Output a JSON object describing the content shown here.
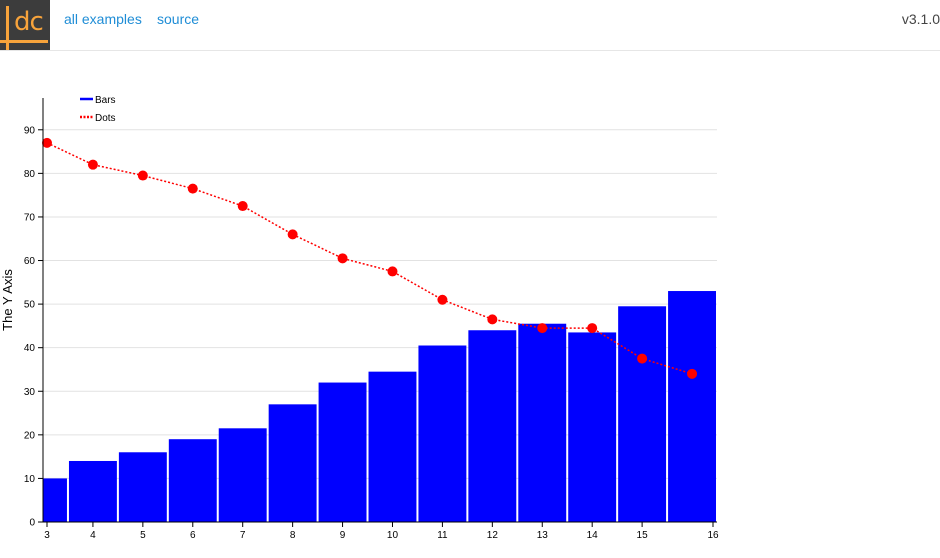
{
  "header": {
    "logo_text": "dc",
    "nav": [
      "all examples",
      "source"
    ],
    "version": "v3.1.0"
  },
  "colors": {
    "bars": "#0000ff",
    "dots": "#ff0000",
    "link": "#1f8dd6"
  },
  "chart_data": {
    "type": "bar+line",
    "ylabel": "The Y Axis",
    "xlim": [
      3,
      16
    ],
    "ylim": [
      0,
      95
    ],
    "xticks": [
      3,
      4,
      5,
      6,
      7,
      8,
      9,
      10,
      11,
      12,
      13,
      14,
      15,
      16
    ],
    "yticks": [
      0,
      10,
      20,
      30,
      40,
      50,
      60,
      70,
      80,
      90
    ],
    "legend": {
      "position": "top-left"
    },
    "series": [
      {
        "name": "Bars",
        "type": "bar",
        "x": [
          3,
          4,
          5,
          6,
          7,
          8,
          9,
          10,
          11,
          12,
          13,
          14,
          15,
          16
        ],
        "values": [
          10,
          14,
          16,
          19,
          21.5,
          27,
          32,
          34.5,
          40.5,
          44,
          45.5,
          43.5,
          49.5,
          53
        ]
      },
      {
        "name": "Dots",
        "type": "line",
        "x": [
          3,
          4,
          5,
          6,
          7,
          8,
          9,
          10,
          11,
          12,
          13,
          14,
          15,
          16
        ],
        "values": [
          87,
          82,
          79.5,
          76.5,
          72.5,
          66,
          60.5,
          57.5,
          51,
          46.5,
          44.5,
          44.5,
          37.5,
          34
        ]
      }
    ]
  }
}
